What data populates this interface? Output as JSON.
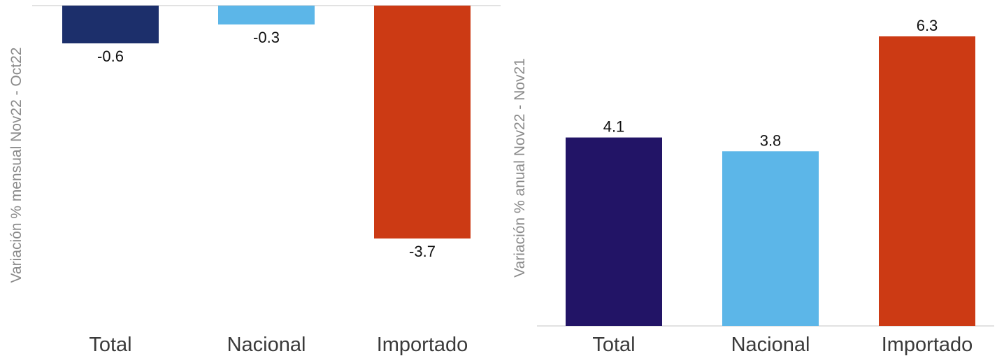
{
  "chart_data": [
    {
      "type": "bar",
      "categories": [
        "Total",
        "Nacional",
        "Importado"
      ],
      "values": [
        -0.6,
        -0.3,
        -3.7
      ],
      "data_labels": [
        "-0.6",
        "-0.3",
        "-3.7"
      ],
      "ylabel": "Variación % mensual Nov22 - Oct22",
      "colors": [
        "#1c2f6b",
        "#5cb6e8",
        "#cc3a14"
      ]
    },
    {
      "type": "bar",
      "categories": [
        "Total",
        "Nacional",
        "Importado"
      ],
      "values": [
        4.1,
        3.8,
        6.3
      ],
      "data_labels": [
        "4.1",
        "3.8",
        "6.3"
      ],
      "ylabel": "Variación % anual Nov22 - Nov21",
      "colors": [
        "#221466",
        "#5cb6e8",
        "#cc3a14"
      ]
    }
  ]
}
